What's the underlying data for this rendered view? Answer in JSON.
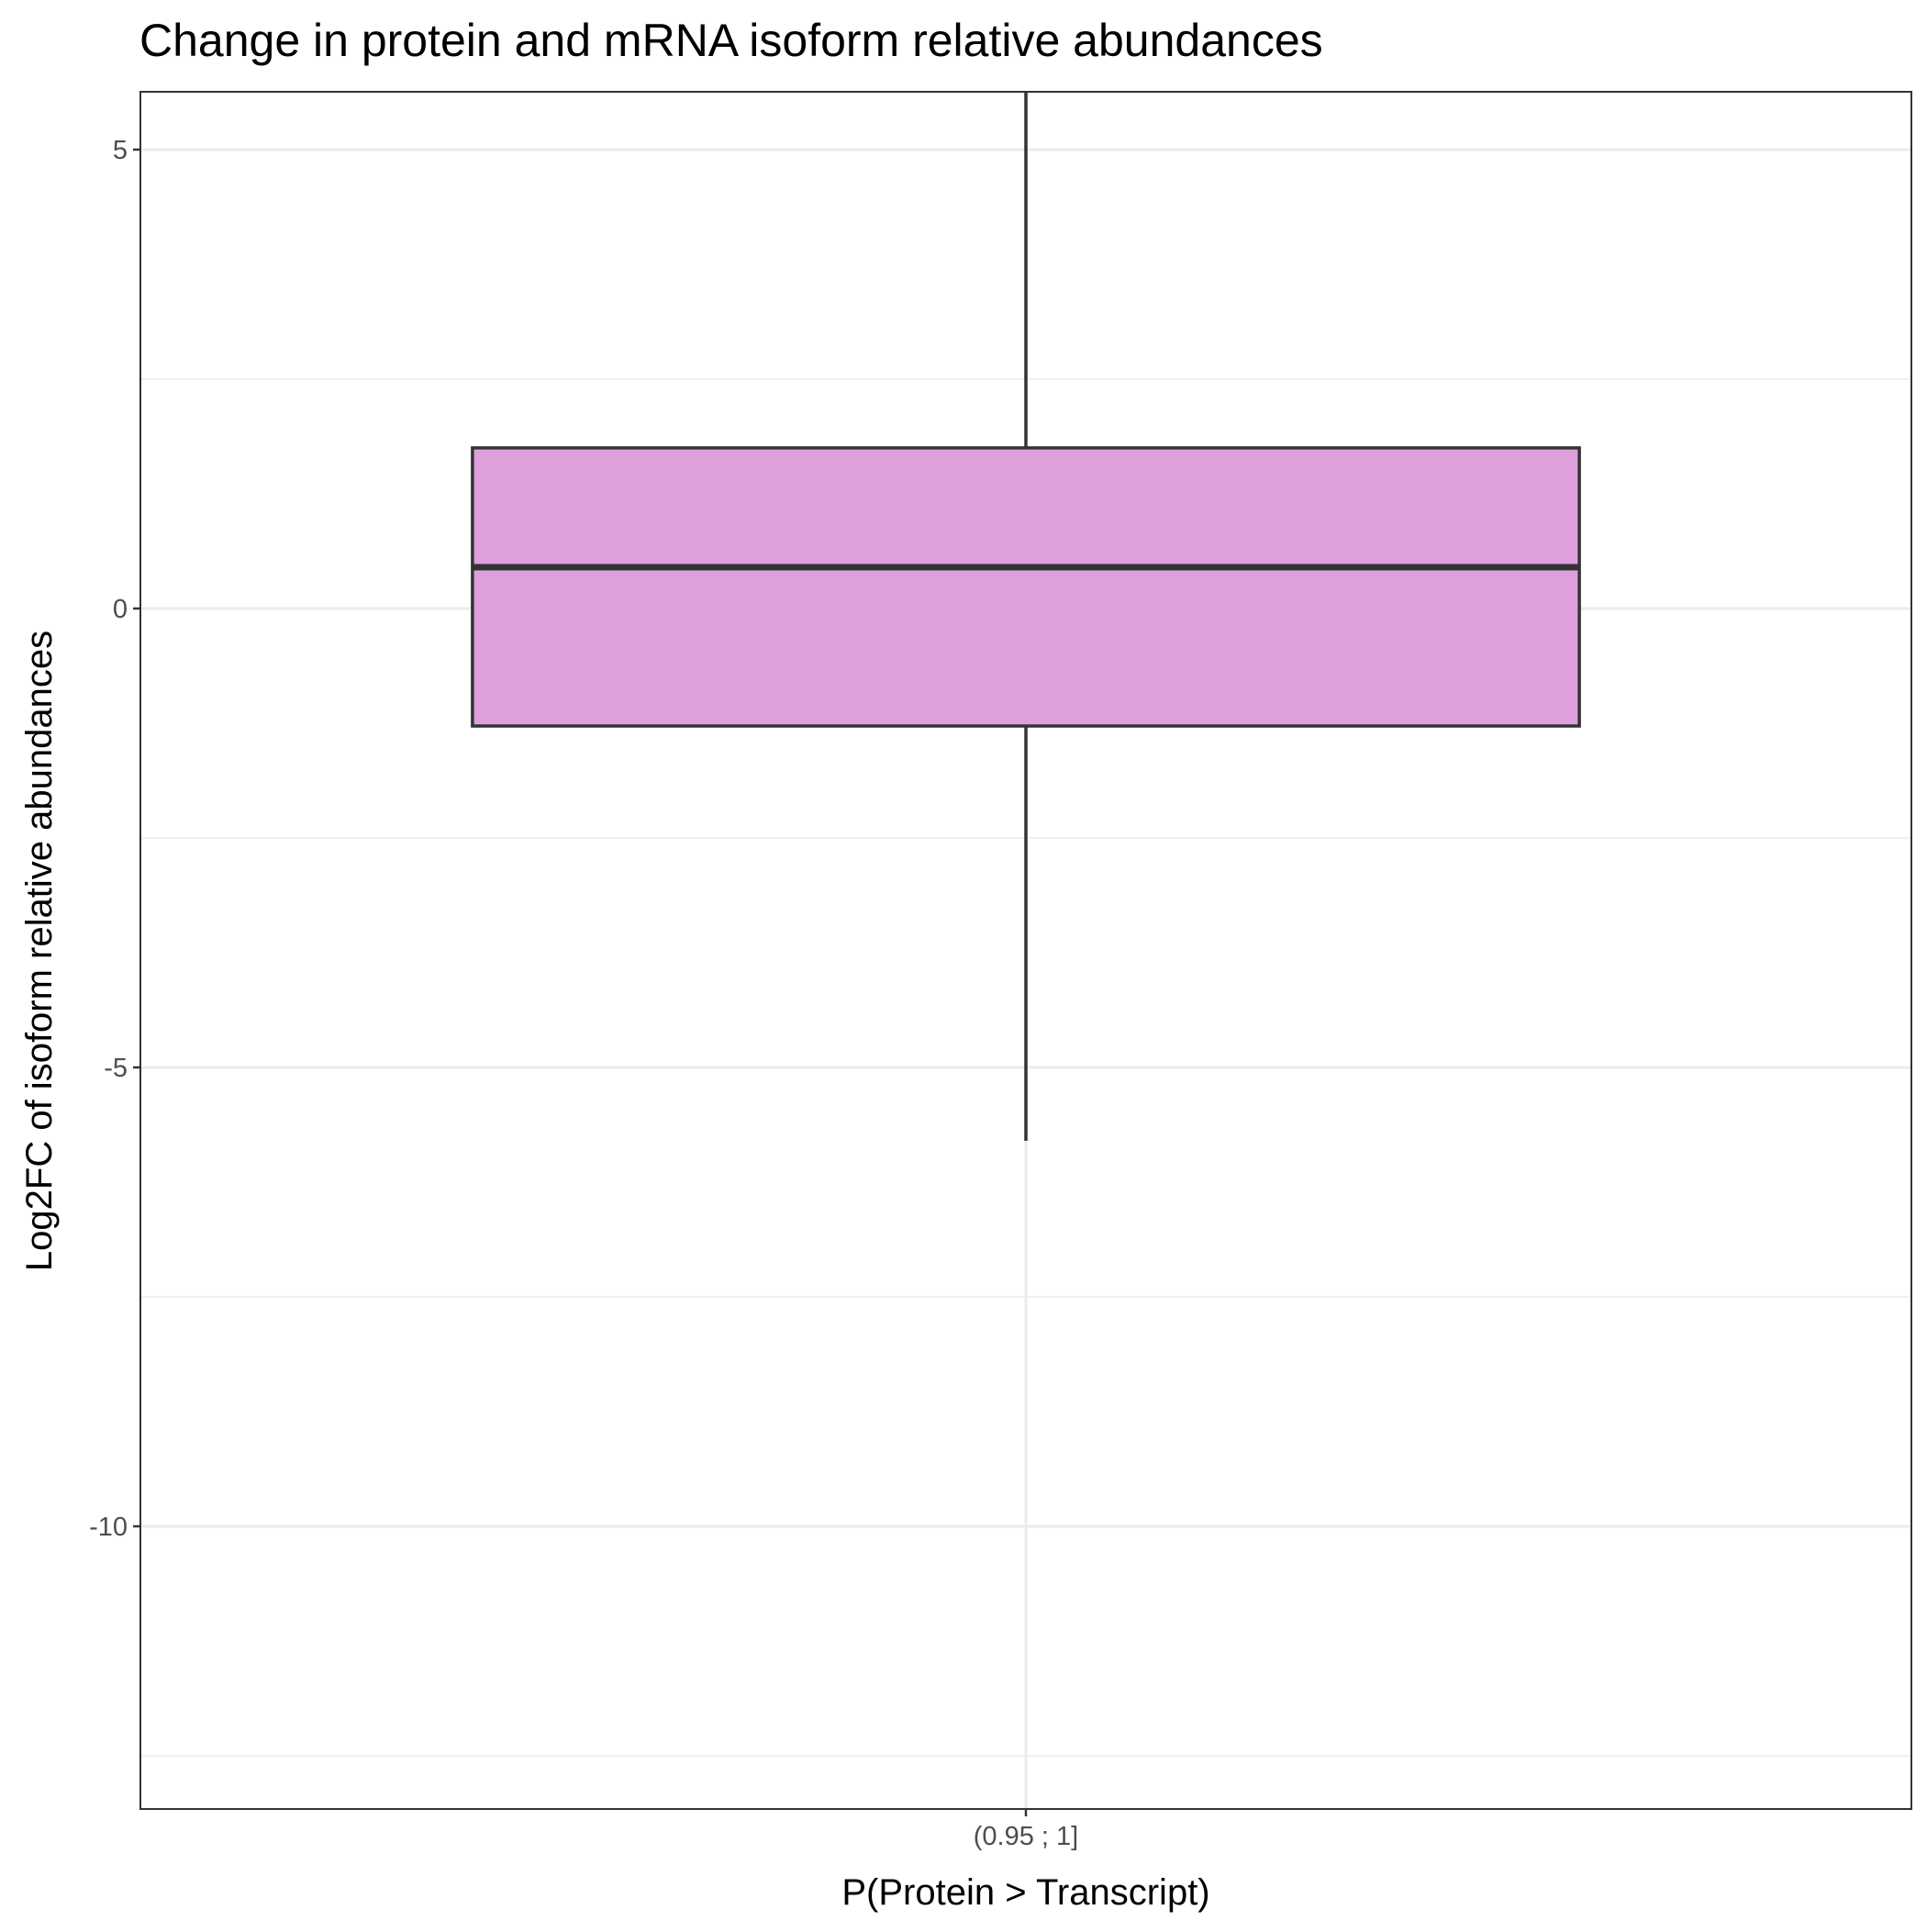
{
  "chart_data": {
    "type": "box",
    "title": "Change in protein and mRNA isoform relative abundances",
    "xlabel": "P(Protein > Transcript)",
    "ylabel": "Log2FC of isoform relative abundances",
    "categories": [
      "(0.95 ; 1]"
    ],
    "yticks": [
      5,
      0,
      -5,
      -10
    ],
    "ylim": [
      -12.7,
      5.65
    ],
    "grid": true,
    "legend": "none",
    "boxes": [
      {
        "category": "(0.95 ; 1]",
        "whisker_low": -5.8,
        "q1": -1.28,
        "median": 0.45,
        "q3": 1.75,
        "whisker_high": 5.65
      }
    ],
    "colors": {
      "box_fill": "#dda0dd",
      "box_stroke": "#333333",
      "grid": "#ebebeb",
      "panel_border": "#333333"
    }
  }
}
